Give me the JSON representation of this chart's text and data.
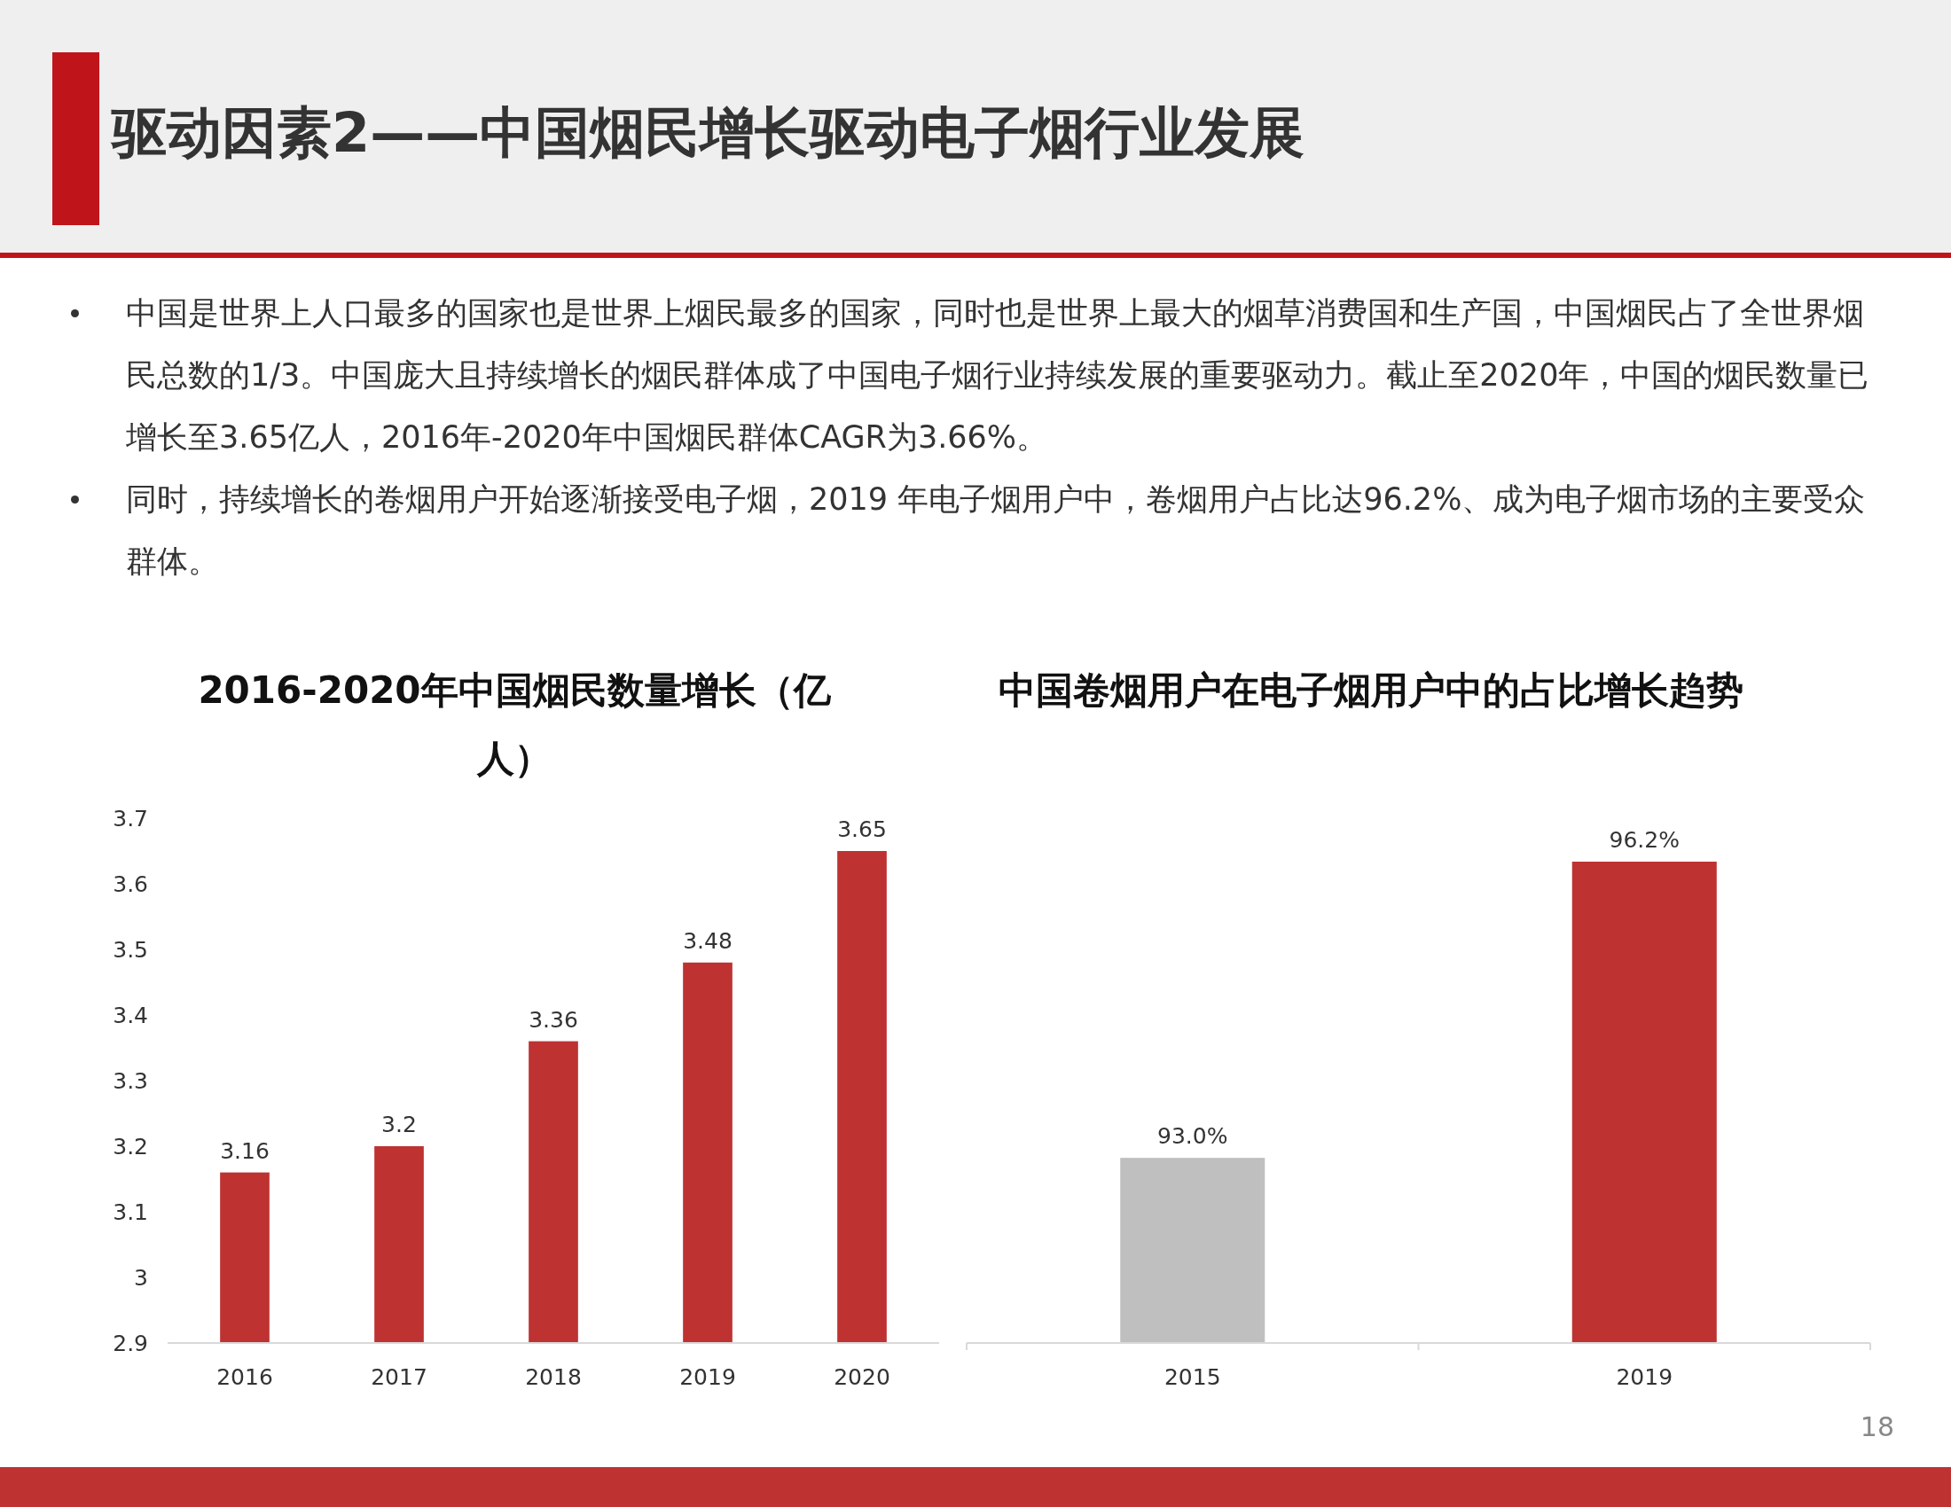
{
  "chart_data": [
    {
      "type": "other",
      "title": "驱动因素2——中国烟民增长驱动电子烟行业发展",
      "annotations": [
        "中国是世界上人口最多的国家也是世界上烟民最多的国家，同时也是世界上最大的烟草消费国和生产国，中国烟民占了全世界烟民总数的1/3。中国庞大且持续增长的烟民群体成了中国电子烟行业持续发展的重要驱动力。截止至2020年，中国的烟民数量已增长至3.65亿人，2016年-2020年中国烟民群体CAGR为3.66%。",
        "同时，持续增长的卷烟用户开始逐渐接受电子烟，2019 年电子烟用户中，卷烟用户占比达96.2%、成为电子烟市场的主要受众群体。",
        "18"
      ]
    },
    {
      "type": "bar",
      "title": "2016-2020年中国烟民数量增长（亿人）",
      "categories": [
        "2016",
        "2017",
        "2018",
        "2019",
        "2020"
      ],
      "values": [
        3.16,
        3.2,
        3.36,
        3.48,
        3.65
      ],
      "color": "#be3232",
      "ylim": [
        2.9,
        3.7
      ],
      "yticks": [
        2.9,
        3,
        3.1,
        3.2,
        3.3,
        3.4,
        3.5,
        3.6,
        3.7
      ],
      "data_labels": true
    },
    {
      "type": "bar",
      "title": "中国卷烟用户在电子烟用户中的占比增长趋势",
      "categories": [
        "2015",
        "2019"
      ],
      "values": [
        93.0,
        96.2
      ],
      "colors": [
        "#bfbfbf",
        "#be3232"
      ],
      "value_labels": [
        "93.0%",
        "96.2%"
      ],
      "ylim": [
        91,
        96.2
      ],
      "tick_labels": "x"
    }
  ]
}
